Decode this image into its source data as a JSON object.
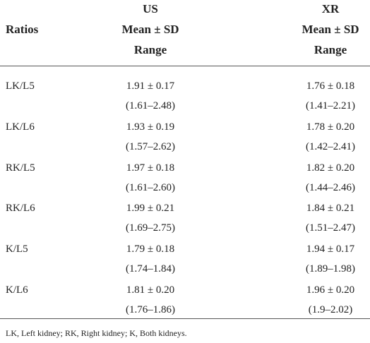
{
  "table": {
    "header": {
      "ratios": "Ratios",
      "columns": [
        [
          "US",
          "Mean ± SD",
          "Range"
        ],
        [
          "XR",
          "Mean ± SD",
          "Range"
        ]
      ]
    },
    "rows": [
      [
        "LK/L5",
        "1.91 ± 0.17",
        "(1.61–2.48)",
        "1.76 ± 0.18",
        "(1.41–2.21)"
      ],
      [
        "LK/L6",
        "1.93 ± 0.19",
        "(1.57–2.62)",
        "1.78 ± 0.20",
        "(1.42–2.41)"
      ],
      [
        "RK/L5",
        "1.97 ± 0.18",
        "(1.61–2.60)",
        "1.82 ± 0.20",
        "(1.44–2.46)"
      ],
      [
        "RK/L6",
        "1.99 ± 0.21",
        "(1.69–2.75)",
        "1.84 ± 0.21",
        "(1.51–2.47)"
      ],
      [
        "K/L5",
        "1.79 ± 0.18",
        "(1.74–1.84)",
        "1.94 ± 0.17",
        "(1.89–1.98)"
      ],
      [
        "K/L6",
        "1.81 ± 0.20",
        "(1.76–1.86)",
        "1.96 ± 0.20",
        "(1.9–2.02)"
      ]
    ],
    "footnote": "LK, Left kidney; RK, Right kidney; K, Both kidneys."
  }
}
